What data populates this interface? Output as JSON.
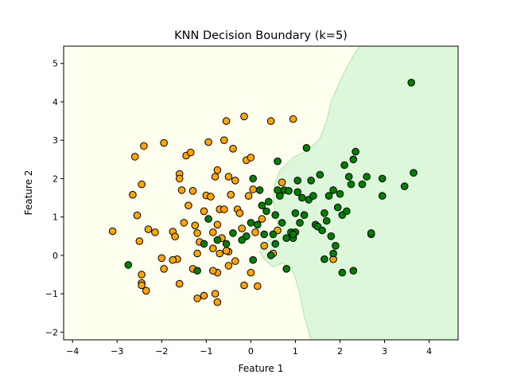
{
  "chart_data": {
    "type": "scatter",
    "title": "KNN Decision Boundary (k=5)",
    "xlabel": "Feature 1",
    "ylabel": "Feature 2",
    "xlim": [
      -4.2,
      4.65
    ],
    "ylim": [
      -2.2,
      5.45
    ],
    "x_ticks": [
      -4,
      -3,
      -2,
      -1,
      0,
      1,
      2,
      3,
      4
    ],
    "y_ticks": [
      -2,
      -1,
      0,
      1,
      2,
      3,
      4,
      5
    ],
    "grid": false,
    "legend": "none",
    "regions": [
      {
        "class": 0,
        "color": "#fffff0"
      },
      {
        "class": 1,
        "color": "#dcf7da"
      }
    ],
    "boundary": [
      [
        1.35,
        -2.2
      ],
      [
        1.2,
        -1.6
      ],
      [
        1.1,
        -1.0
      ],
      [
        1.0,
        -0.6
      ],
      [
        0.9,
        -0.3
      ],
      [
        0.7,
        -0.2
      ],
      [
        0.5,
        -0.3
      ],
      [
        0.3,
        -0.1
      ],
      [
        0.2,
        0.1
      ],
      [
        0.3,
        0.3
      ],
      [
        0.5,
        0.5
      ],
      [
        0.6,
        0.8
      ],
      [
        0.55,
        1.1
      ],
      [
        0.5,
        1.5
      ],
      [
        0.55,
        1.9
      ],
      [
        0.65,
        2.2
      ],
      [
        0.95,
        2.55
      ],
      [
        1.3,
        2.75
      ],
      [
        1.55,
        3.05
      ],
      [
        1.7,
        3.5
      ],
      [
        1.8,
        4.0
      ],
      [
        1.95,
        4.4
      ],
      [
        2.15,
        4.9
      ],
      [
        2.35,
        5.3
      ],
      [
        2.45,
        5.45
      ]
    ],
    "series": [
      {
        "class": 0,
        "color": "#ffa500",
        "points": [
          [
            -3.1,
            0.63
          ],
          [
            -2.6,
            2.57
          ],
          [
            -2.65,
            1.58
          ],
          [
            -2.55,
            1.04
          ],
          [
            -2.5,
            0.37
          ],
          [
            -2.45,
            1.85
          ],
          [
            -2.4,
            2.85
          ],
          [
            -2.3,
            0.68
          ],
          [
            -2.15,
            0.6
          ],
          [
            -1.95,
            2.93
          ],
          [
            -2.0,
            -0.07
          ],
          [
            -1.95,
            -0.35
          ],
          [
            -1.75,
            0.62
          ],
          [
            -1.7,
            0.49
          ],
          [
            -1.65,
            -0.1
          ],
          [
            -1.6,
            2.12
          ],
          [
            -1.6,
            2.0
          ],
          [
            -1.55,
            1.7
          ],
          [
            -1.5,
            0.85
          ],
          [
            -1.45,
            2.6
          ],
          [
            -1.4,
            1.3
          ],
          [
            -1.35,
            2.68
          ],
          [
            -1.25,
            0.78
          ],
          [
            -1.3,
            1.68
          ],
          [
            -1.2,
            0.58
          ],
          [
            -1.15,
            0.35
          ],
          [
            -1.05,
            1.15
          ],
          [
            -1.0,
            1.56
          ],
          [
            -0.9,
            1.53
          ],
          [
            -0.95,
            2.95
          ],
          [
            -0.85,
            0.6
          ],
          [
            -0.85,
            0.18
          ],
          [
            -0.8,
            2.05
          ],
          [
            -0.75,
            0.8
          ],
          [
            -0.7,
            1.2
          ],
          [
            -0.75,
            2.22
          ],
          [
            -0.7,
            0.05
          ],
          [
            -0.65,
            0.45
          ],
          [
            -0.6,
            3.0
          ],
          [
            -0.55,
            3.5
          ],
          [
            -0.6,
            1.2
          ],
          [
            -0.5,
            0.1
          ],
          [
            -0.5,
            2.05
          ],
          [
            -0.45,
            1.58
          ],
          [
            -0.4,
            2.78
          ],
          [
            -0.35,
            1.95
          ],
          [
            -0.3,
            1.2
          ],
          [
            -0.25,
            1.1
          ],
          [
            -0.2,
            0.7
          ],
          [
            -0.15,
            3.62
          ],
          [
            -0.1,
            2.48
          ],
          [
            -0.05,
            1.55
          ],
          [
            0.0,
            2.55
          ],
          [
            0.05,
            1.72
          ],
          [
            0.1,
            0.6
          ],
          [
            0.25,
            0.95
          ],
          [
            0.3,
            0.25
          ],
          [
            0.45,
            3.5
          ],
          [
            0.5,
            0.05
          ],
          [
            0.6,
            0.65
          ],
          [
            0.7,
            1.9
          ],
          [
            0.95,
            3.55
          ],
          [
            1.85,
            -0.1
          ],
          [
            2.7,
            0.55
          ],
          [
            -2.45,
            -0.5
          ],
          [
            -2.45,
            -0.72
          ],
          [
            -2.45,
            -0.78
          ],
          [
            -2.35,
            -0.92
          ],
          [
            -1.75,
            -0.12
          ],
          [
            -1.6,
            -0.74
          ],
          [
            -1.3,
            -0.35
          ],
          [
            -1.2,
            0.05
          ],
          [
            -1.2,
            -1.12
          ],
          [
            -1.05,
            -1.05
          ],
          [
            -0.8,
            -1.0
          ],
          [
            -0.75,
            -1.22
          ],
          [
            -0.55,
            0.12
          ],
          [
            -0.5,
            -0.27
          ],
          [
            -0.35,
            -0.15
          ],
          [
            -0.15,
            -0.78
          ],
          [
            0.0,
            -0.45
          ],
          [
            0.15,
            -0.8
          ],
          [
            -0.75,
            -0.45
          ],
          [
            -0.85,
            -0.4
          ]
        ]
      },
      {
        "class": 1,
        "color": "#008000",
        "points": [
          [
            -2.75,
            -0.25
          ],
          [
            -1.2,
            -0.4
          ],
          [
            -1.05,
            0.3
          ],
          [
            -0.95,
            0.95
          ],
          [
            -0.75,
            0.4
          ],
          [
            -0.55,
            0.3
          ],
          [
            -0.4,
            0.58
          ],
          [
            -0.2,
            0.4
          ],
          [
            -0.1,
            0.5
          ],
          [
            0.0,
            0.85
          ],
          [
            0.05,
            2.0
          ],
          [
            0.05,
            -0.12
          ],
          [
            0.15,
            0.8
          ],
          [
            0.2,
            1.7
          ],
          [
            0.25,
            1.3
          ],
          [
            0.3,
            0.55
          ],
          [
            0.35,
            1.15
          ],
          [
            0.4,
            1.4
          ],
          [
            0.45,
            0.0
          ],
          [
            0.5,
            0.55
          ],
          [
            0.55,
            1.05
          ],
          [
            0.6,
            2.45
          ],
          [
            0.65,
            1.55
          ],
          [
            0.7,
            0.85
          ],
          [
            0.75,
            1.7
          ],
          [
            0.8,
            0.45
          ],
          [
            0.85,
            1.68
          ],
          [
            0.9,
            0.6
          ],
          [
            0.95,
            0.45
          ],
          [
            1.0,
            1.1
          ],
          [
            1.05,
            1.95
          ],
          [
            1.05,
            1.65
          ],
          [
            1.1,
            0.85
          ],
          [
            1.15,
            1.5
          ],
          [
            1.2,
            1.05
          ],
          [
            1.25,
            2.8
          ],
          [
            1.3,
            1.45
          ],
          [
            1.35,
            1.95
          ],
          [
            1.4,
            1.55
          ],
          [
            1.45,
            0.8
          ],
          [
            1.5,
            0.75
          ],
          [
            1.55,
            2.1
          ],
          [
            1.6,
            0.65
          ],
          [
            1.65,
            1.1
          ],
          [
            1.7,
            0.9
          ],
          [
            1.75,
            1.55
          ],
          [
            1.8,
            0.5
          ],
          [
            1.85,
            1.7
          ],
          [
            1.9,
            0.25
          ],
          [
            1.95,
            1.25
          ],
          [
            2.0,
            1.6
          ],
          [
            2.05,
            1.05
          ],
          [
            2.1,
            2.35
          ],
          [
            2.15,
            1.15
          ],
          [
            2.2,
            2.05
          ],
          [
            2.25,
            1.85
          ],
          [
            2.3,
            2.5
          ],
          [
            2.35,
            2.7
          ],
          [
            2.5,
            1.85
          ],
          [
            2.6,
            2.05
          ],
          [
            2.7,
            0.58
          ],
          [
            2.95,
            2.0
          ],
          [
            2.95,
            1.55
          ],
          [
            3.45,
            1.8
          ],
          [
            3.6,
            4.5
          ],
          [
            3.65,
            2.15
          ],
          [
            0.8,
            -0.35
          ],
          [
            1.65,
            -0.1
          ],
          [
            2.05,
            -0.45
          ],
          [
            2.3,
            -0.4
          ],
          [
            1.85,
            0.05
          ],
          [
            0.6,
            1.7
          ],
          [
            1.0,
            0.6
          ],
          [
            0.95,
            0.55
          ],
          [
            0.55,
            0.3
          ]
        ]
      }
    ]
  }
}
